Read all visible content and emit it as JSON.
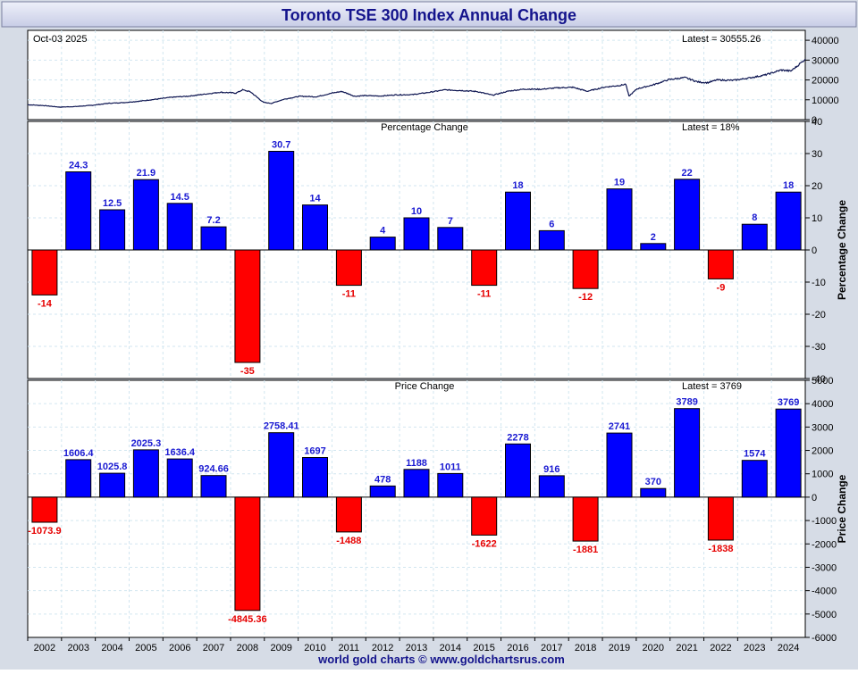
{
  "title": "Toronto TSE 300 Index Annual Change",
  "footer": "world gold charts © www.goldchartsrus.com",
  "colors": {
    "background": "#d6dce6",
    "title_bg_top": "#eef0fa",
    "title_bg_bottom": "#c8cde6",
    "title_text": "#14148c",
    "positive": "#0000ff",
    "negative": "#ff0000",
    "positive_label": "#1a1ad2",
    "negative_label": "#e60000",
    "line": "#0c1450",
    "grid": "#d2e6f0"
  },
  "chart_data": [
    {
      "type": "line",
      "title": "",
      "date_label": "Oct-03  2025",
      "latest_label": "Latest = 30555.26",
      "ylim": [
        0,
        45000
      ],
      "yticks": [
        0,
        10000,
        20000,
        30000,
        40000
      ],
      "ytick_labels": [
        "0",
        "10000",
        "20000",
        "30000",
        "40000"
      ],
      "x_start_year": 2001.5,
      "x_end_year": 2025.75,
      "points": [
        [
          2001.5,
          7500
        ],
        [
          2002.0,
          7100
        ],
        [
          2002.5,
          6300
        ],
        [
          2003.0,
          6600
        ],
        [
          2003.5,
          7200
        ],
        [
          2004.0,
          8200
        ],
        [
          2004.5,
          8600
        ],
        [
          2005.0,
          9300
        ],
        [
          2005.5,
          10300
        ],
        [
          2006.0,
          11300
        ],
        [
          2006.5,
          11800
        ],
        [
          2007.0,
          12800
        ],
        [
          2007.5,
          13800
        ],
        [
          2008.0,
          13400
        ],
        [
          2008.2,
          15000
        ],
        [
          2008.45,
          14000
        ],
        [
          2008.6,
          12000
        ],
        [
          2008.85,
          8700
        ],
        [
          2009.1,
          8200
        ],
        [
          2009.5,
          10300
        ],
        [
          2010.0,
          11800
        ],
        [
          2010.5,
          11500
        ],
        [
          2011.0,
          13400
        ],
        [
          2011.3,
          14200
        ],
        [
          2011.7,
          11800
        ],
        [
          2012.0,
          12100
        ],
        [
          2012.5,
          11900
        ],
        [
          2013.0,
          12500
        ],
        [
          2013.5,
          12600
        ],
        [
          2014.0,
          13700
        ],
        [
          2014.5,
          15000
        ],
        [
          2015.0,
          14700
        ],
        [
          2015.5,
          14200
        ],
        [
          2016.0,
          12300
        ],
        [
          2016.5,
          14400
        ],
        [
          2017.0,
          15400
        ],
        [
          2017.5,
          15300
        ],
        [
          2018.0,
          16000
        ],
        [
          2018.5,
          16300
        ],
        [
          2018.95,
          14300
        ],
        [
          2019.0,
          14500
        ],
        [
          2019.5,
          16400
        ],
        [
          2020.0,
          17300
        ],
        [
          2020.15,
          17900
        ],
        [
          2020.25,
          11800
        ],
        [
          2020.5,
          15500
        ],
        [
          2021.0,
          17500
        ],
        [
          2021.5,
          20200
        ],
        [
          2022.0,
          21200
        ],
        [
          2022.4,
          19000
        ],
        [
          2022.7,
          18600
        ],
        [
          2023.0,
          20000
        ],
        [
          2023.5,
          19800
        ],
        [
          2024.0,
          21000
        ],
        [
          2024.5,
          22500
        ],
        [
          2025.0,
          25000
        ],
        [
          2025.3,
          24500
        ],
        [
          2025.5,
          27000
        ],
        [
          2025.75,
          30555.26
        ]
      ]
    },
    {
      "type": "bar",
      "title": "Percentage Change",
      "latest_label": "Latest = 18%",
      "ylabel": "Percentage Change",
      "ylim": [
        -40,
        40
      ],
      "yticks": [
        -40,
        -30,
        -20,
        -10,
        0,
        10,
        20,
        30,
        40
      ],
      "ytick_labels": [
        "-40",
        "-30",
        "-20",
        "-10",
        "0",
        "10",
        "20",
        "30",
        "40"
      ],
      "categories": [
        "2002",
        "2003",
        "2004",
        "2005",
        "2006",
        "2007",
        "2008",
        "2009",
        "2010",
        "2011",
        "2012",
        "2013",
        "2014",
        "2015",
        "2016",
        "2017",
        "2018",
        "2019",
        "2020",
        "2021",
        "2022",
        "2023",
        "2024"
      ],
      "values": [
        -14,
        24.3,
        12.5,
        21.9,
        14.5,
        7.2,
        -35,
        30.7,
        14,
        -11,
        4,
        10,
        7,
        -11,
        18,
        6,
        -12,
        19,
        2,
        22,
        -9,
        8,
        18
      ],
      "value_labels": [
        "-14",
        "24.3",
        "12.5",
        "21.9",
        "14.5",
        "7.2",
        "-35",
        "30.7",
        "14",
        "-11",
        "4",
        "10",
        "7",
        "-11",
        "18",
        "6",
        "-12",
        "19",
        "2",
        "22",
        "-9",
        "8",
        "18"
      ]
    },
    {
      "type": "bar",
      "title": "Price Change",
      "latest_label": "Latest = 3769",
      "ylabel": "Price Change",
      "ylim": [
        -6000,
        5000
      ],
      "yticks": [
        -6000,
        -5000,
        -4000,
        -3000,
        -2000,
        -1000,
        0,
        1000,
        2000,
        3000,
        4000,
        5000
      ],
      "ytick_labels": [
        "-6000",
        "-5000",
        "-4000",
        "-3000",
        "-2000",
        "-1000",
        "0",
        "1000",
        "2000",
        "3000",
        "4000",
        "5000"
      ],
      "categories": [
        "2002",
        "2003",
        "2004",
        "2005",
        "2006",
        "2007",
        "2008",
        "2009",
        "2010",
        "2011",
        "2012",
        "2013",
        "2014",
        "2015",
        "2016",
        "2017",
        "2018",
        "2019",
        "2020",
        "2021",
        "2022",
        "2023",
        "2024"
      ],
      "values": [
        -1073.9,
        1606.4,
        1025.8,
        2025.3,
        1636.4,
        924.66,
        -4845.36,
        2758.41,
        1697,
        -1488,
        478,
        1188,
        1011,
        -1622,
        2278,
        916,
        -1881,
        2741,
        370,
        3789,
        -1838,
        1574,
        3769
      ],
      "value_labels": [
        "-1073.9",
        "1606.4",
        "1025.8",
        "2025.3",
        "1636.4",
        "924.66",
        "-4845.36",
        "2758.41",
        "1697",
        "-1488",
        "478",
        "1188",
        "1011",
        "-1622",
        "2278",
        "916",
        "-1881",
        "2741",
        "370",
        "3789",
        "-1838",
        "1574",
        "3769"
      ]
    }
  ]
}
